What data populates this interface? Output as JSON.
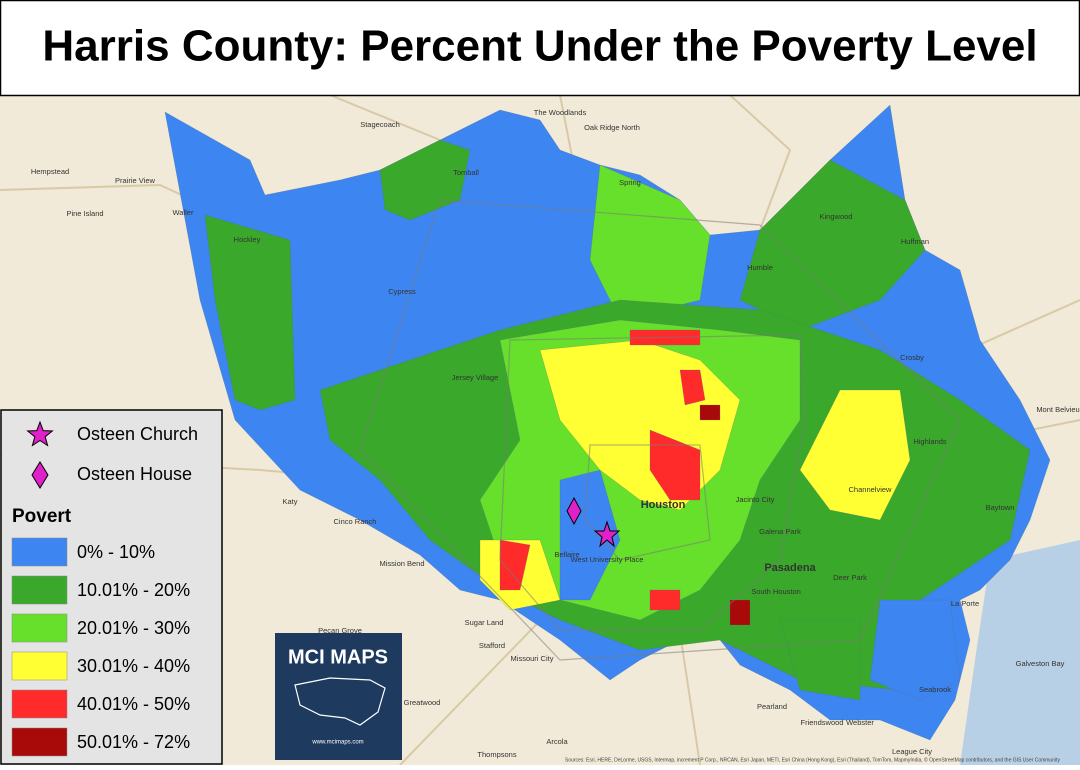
{
  "title": "Harris County: Percent Under the Poverty Level",
  "legend": {
    "symbols": [
      {
        "label": "Osteen Church",
        "shape": "star",
        "color": "#e020c8"
      },
      {
        "label": "Osteen House",
        "shape": "diamond",
        "color": "#e020c8"
      }
    ],
    "heading": "Povert",
    "classes": [
      {
        "label": "0% - 10%",
        "color": "#3d85f0"
      },
      {
        "label": "10.01% - 20%",
        "color": "#3aa82a"
      },
      {
        "label": "20.01% - 30%",
        "color": "#66e02a"
      },
      {
        "label": "30.01% - 40%",
        "color": "#ffff33"
      },
      {
        "label": "40.01% - 50%",
        "color": "#ff2a2a"
      },
      {
        "label": "50.01% - 72%",
        "color": "#a80a0a"
      }
    ]
  },
  "logo": {
    "title": "MCI MAPS",
    "url": "www.mcimaps.com"
  },
  "places": [
    "The Woodlands",
    "Oak Ridge North",
    "Stagecoach",
    "Hempstead",
    "Prairie View",
    "Waller",
    "Pine Island",
    "Tomball",
    "Spring",
    "Kingwood",
    "Humble",
    "Huffman",
    "Hockley",
    "Cypress",
    "Jersey Village",
    "Crosby",
    "Katy",
    "Houston",
    "Pasadena",
    "Baytown",
    "Mont Belvieu",
    "Highlands",
    "Channelview",
    "Cinco Ranch",
    "Mission Bend",
    "Sugar Land",
    "Stafford",
    "Missouri City",
    "Pearland",
    "Friendswood",
    "League City",
    "Webster",
    "La Porte",
    "Deer Park",
    "South Houston",
    "Galena Park",
    "Jacinto City",
    "West University Place",
    "Bellaire",
    "Galveston Bay",
    "Seabrook",
    "Thompsons",
    "Arcola",
    "Greatwood",
    "Pecan Grove"
  ],
  "attribution": "Sources: Esri, HERE, DeLorme, USGS, Intermap, increment P Corp., NRCAN, Esri Japan, METI, Esri China (Hong Kong), Esri (Thailand), TomTom, MapmyIndia, © OpenStreetMap contributors, and the GIS User Community"
}
